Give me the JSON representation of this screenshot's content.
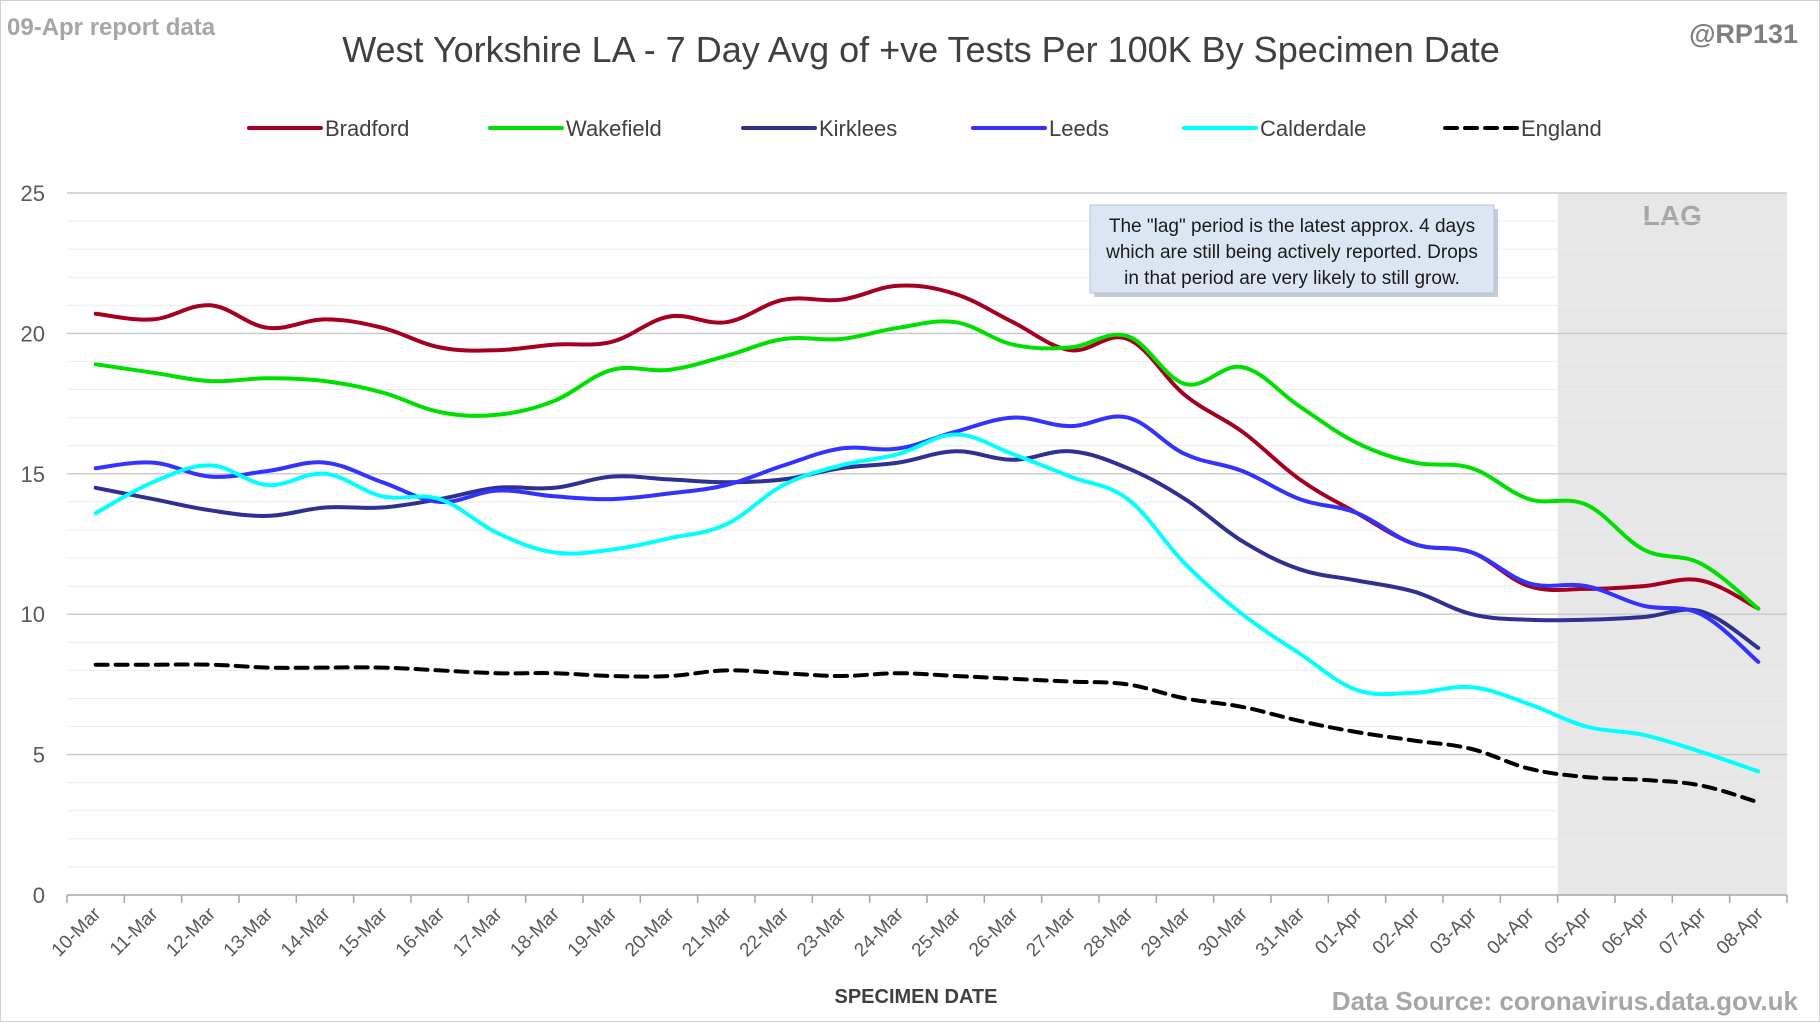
{
  "header": {
    "report_label": "09-Apr report data",
    "handle": "@RP131"
  },
  "footer": {
    "source": "Data Source: coronavirus.data.gov.uk"
  },
  "annotation": {
    "lag_label": "LAG",
    "note_lines": [
      "The \"lag\" period is the latest approx. 4 days",
      "which are still being actively reported.  Drops",
      "in that period are very likely to still grow."
    ],
    "lag_start": "05-Apr",
    "lag_end": "08-Apr",
    "lag_shade_color": "#e7e7e7",
    "note_fill_color": "#dce6f2"
  },
  "chart_data": {
    "type": "line",
    "title": "West Yorkshire LA - 7 Day Avg of +ve Tests Per 100K By Specimen Date",
    "xlabel": "SPECIMEN DATE",
    "ylabel": "",
    "ylim": [
      0,
      25
    ],
    "yticks": [
      0,
      5,
      10,
      15,
      20,
      25
    ],
    "grid": true,
    "minor_grid": true,
    "legend_position": "top",
    "categories": [
      "10-Mar",
      "11-Mar",
      "12-Mar",
      "13-Mar",
      "14-Mar",
      "15-Mar",
      "16-Mar",
      "17-Mar",
      "18-Mar",
      "19-Mar",
      "20-Mar",
      "21-Mar",
      "22-Mar",
      "23-Mar",
      "24-Mar",
      "25-Mar",
      "26-Mar",
      "27-Mar",
      "28-Mar",
      "29-Mar",
      "30-Mar",
      "31-Mar",
      "01-Apr",
      "02-Apr",
      "03-Apr",
      "04-Apr",
      "05-Apr",
      "06-Apr",
      "07-Apr",
      "08-Apr"
    ],
    "series": [
      {
        "name": "Bradford",
        "color": "#a50021",
        "dashed": false,
        "values": [
          20.7,
          20.5,
          21.0,
          20.2,
          20.5,
          20.2,
          19.5,
          19.4,
          19.6,
          19.7,
          20.6,
          20.4,
          21.2,
          21.2,
          21.7,
          21.4,
          20.4,
          19.4,
          19.8,
          17.8,
          16.5,
          14.8,
          13.6,
          12.5,
          12.2,
          11.0,
          10.9,
          11.0,
          11.2,
          10.2
        ]
      },
      {
        "name": "Wakefield",
        "color": "#00e000",
        "dashed": false,
        "values": [
          18.9,
          18.6,
          18.3,
          18.4,
          18.3,
          17.9,
          17.2,
          17.1,
          17.6,
          18.7,
          18.7,
          19.2,
          19.8,
          19.8,
          20.2,
          20.4,
          19.6,
          19.5,
          19.9,
          18.2,
          18.8,
          17.4,
          16.1,
          15.4,
          15.2,
          14.1,
          13.9,
          12.3,
          11.8,
          10.2
        ]
      },
      {
        "name": "Kirklees",
        "color": "#2e3192",
        "dashed": false,
        "values": [
          14.5,
          14.1,
          13.7,
          13.5,
          13.8,
          13.8,
          14.1,
          14.5,
          14.5,
          14.9,
          14.8,
          14.7,
          14.8,
          15.2,
          15.4,
          15.8,
          15.5,
          15.8,
          15.2,
          14.1,
          12.6,
          11.6,
          11.2,
          10.8,
          10.0,
          9.8,
          9.8,
          9.9,
          10.1,
          8.8
        ]
      },
      {
        "name": "Leeds",
        "color": "#3333ff",
        "dashed": false,
        "values": [
          15.2,
          15.4,
          14.9,
          15.1,
          15.4,
          14.7,
          14.0,
          14.4,
          14.2,
          14.1,
          14.3,
          14.6,
          15.3,
          15.9,
          15.9,
          16.5,
          17.0,
          16.7,
          17.0,
          15.7,
          15.1,
          14.1,
          13.6,
          12.5,
          12.2,
          11.1,
          11.0,
          10.3,
          10.0,
          8.3
        ]
      },
      {
        "name": "Calderdale",
        "color": "#00ffff",
        "dashed": false,
        "values": [
          13.6,
          14.7,
          15.3,
          14.6,
          15.0,
          14.2,
          14.1,
          12.9,
          12.2,
          12.3,
          12.7,
          13.2,
          14.6,
          15.3,
          15.7,
          16.4,
          15.7,
          14.9,
          14.1,
          11.8,
          10.0,
          8.6,
          7.3,
          7.2,
          7.4,
          6.8,
          6.0,
          5.7,
          5.1,
          4.4
        ]
      },
      {
        "name": "England",
        "color": "#000000",
        "dashed": true,
        "values": [
          8.2,
          8.2,
          8.2,
          8.1,
          8.1,
          8.1,
          8.0,
          7.9,
          7.9,
          7.8,
          7.8,
          8.0,
          7.9,
          7.8,
          7.9,
          7.8,
          7.7,
          7.6,
          7.5,
          7.0,
          6.7,
          6.2,
          5.8,
          5.5,
          5.2,
          4.5,
          4.2,
          4.1,
          3.9,
          3.3
        ]
      }
    ]
  }
}
